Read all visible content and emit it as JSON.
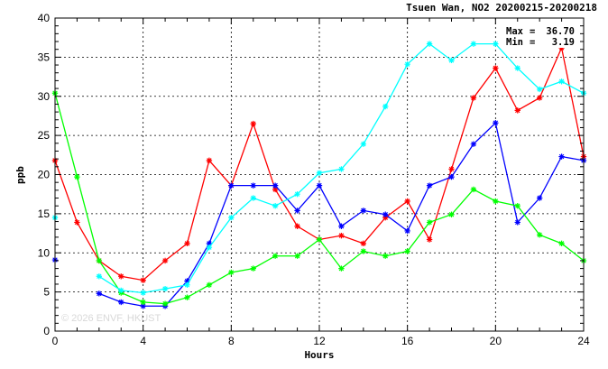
{
  "chart_data": {
    "type": "line",
    "title": "Tsuen Wan, NO2 20200215-20200218",
    "xlabel": "Hours",
    "ylabel": "ppb",
    "xlim": [
      0,
      24
    ],
    "ylim": [
      0,
      40
    ],
    "xticks": [
      0,
      4,
      8,
      12,
      16,
      20,
      24
    ],
    "yticks": [
      0,
      5,
      10,
      15,
      20,
      25,
      30,
      35,
      40
    ],
    "grid": true,
    "x": [
      0,
      1,
      2,
      3,
      4,
      5,
      6,
      7,
      8,
      9,
      10,
      11,
      12,
      13,
      14,
      15,
      16,
      17,
      18,
      19,
      20,
      21,
      22,
      23,
      24
    ],
    "series": [
      {
        "color": "#ff0000",
        "values": [
          21.8,
          13.9,
          9.0,
          7.0,
          6.5,
          9.0,
          11.2,
          21.8,
          18.6,
          26.5,
          18.1,
          13.4,
          11.7,
          12.2,
          11.2,
          14.5,
          16.6,
          11.7,
          20.7,
          29.8,
          33.6,
          28.2,
          29.8,
          36.2,
          22.3
        ]
      },
      {
        "color": "#0000ff",
        "values": [
          9.1,
          null,
          4.8,
          3.7,
          3.2,
          3.2,
          6.4,
          11.2,
          18.6,
          18.6,
          18.6,
          15.4,
          18.6,
          13.4,
          15.4,
          14.9,
          12.8,
          18.6,
          19.7,
          23.9,
          26.6,
          13.9,
          17.0,
          22.3,
          21.8
        ]
      },
      {
        "color": "#00ff00",
        "values": [
          30.4,
          19.7,
          9.0,
          4.9,
          3.7,
          3.5,
          4.3,
          5.9,
          7.5,
          8.0,
          9.6,
          9.6,
          11.7,
          8.0,
          10.2,
          9.6,
          10.2,
          13.9,
          14.9,
          18.1,
          16.6,
          16.0,
          12.3,
          11.2,
          9.0
        ]
      },
      {
        "color": "#00ffff",
        "values": [
          14.5,
          null,
          7.0,
          5.2,
          4.9,
          5.4,
          5.9,
          10.7,
          14.5,
          17.0,
          16.0,
          17.5,
          20.2,
          20.7,
          23.9,
          28.7,
          34.1,
          36.7,
          34.6,
          36.7,
          36.7,
          33.6,
          30.9,
          31.9,
          30.4
        ]
      }
    ],
    "annotations": {
      "max_label": "Max",
      "max_value": "36.70",
      "min_label": "Min",
      "min_value": "3.19"
    },
    "watermark": "© 2026  ENVF, HKUST"
  }
}
